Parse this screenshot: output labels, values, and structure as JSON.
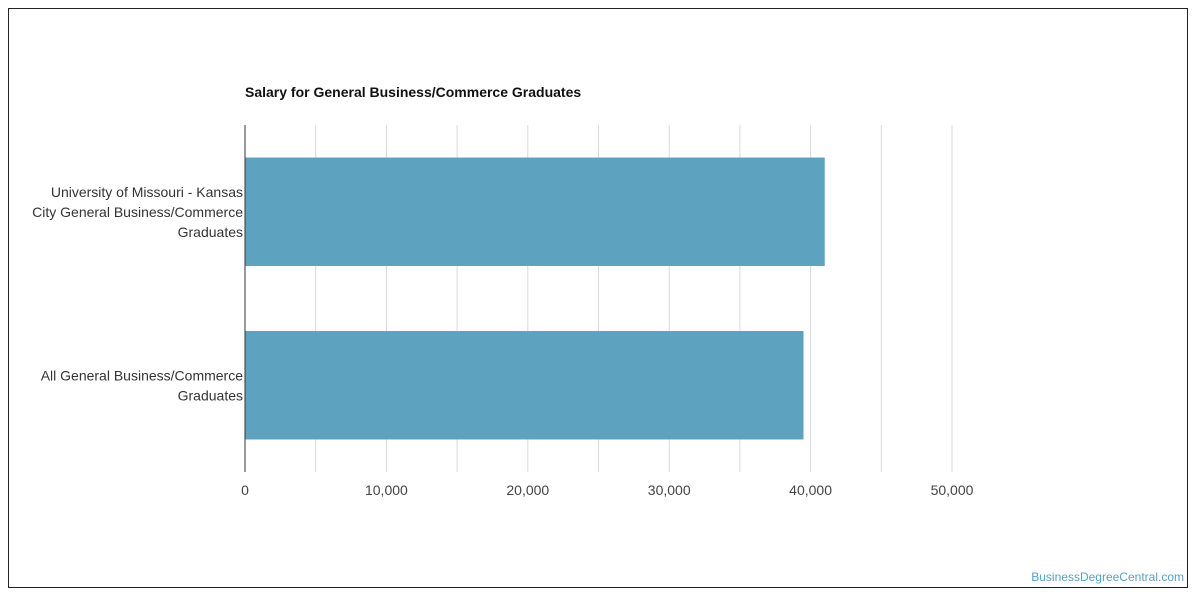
{
  "site": {
    "watermark": "BusinessDegreeCentral.com"
  },
  "chart_data": {
    "type": "bar",
    "orientation": "horizontal",
    "title": "Salary for General Business/Commerce Graduates",
    "categories": [
      [
        "University of Missouri - Kansas",
        "City General Business/Commerce",
        "Graduates"
      ],
      [
        "All General Business/Commerce",
        "Graduates"
      ]
    ],
    "values": [
      41000,
      39500
    ],
    "xlim": [
      0,
      50000
    ],
    "xticks": [
      0,
      10000,
      20000,
      30000,
      40000,
      50000
    ],
    "xtick_labels": [
      "0",
      "10,000",
      "20,000",
      "30,000",
      "40,000",
      "50,000"
    ],
    "grid": true,
    "bar_color": "#5da2bf",
    "grid_color": "#d9d9d9"
  }
}
